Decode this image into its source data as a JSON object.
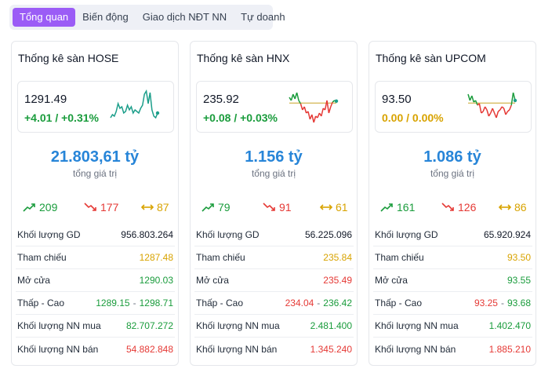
{
  "tabs": [
    "Tổng quan",
    "Biến động",
    "Giao dịch NĐT NN",
    "Tự doanh"
  ],
  "active_tab": 0,
  "labels": {
    "total": "tổng giá trị",
    "volume": "Khối lượng GD",
    "ref": "Tham chiếu",
    "open": "Mở cửa",
    "lowhigh": "Thấp - Cao",
    "foreign_buy": "Khối lượng NN mua",
    "foreign_sell": "Khối lượng NN bán"
  },
  "colors": {
    "up": "#1a9c3c",
    "down": "#e53935",
    "flat": "#d8a300",
    "accent": "#9b5cf6",
    "total": "#2785d8",
    "spark_green": "#1b9e8a"
  },
  "markets": [
    {
      "title": "Thống kê sàn HOSE",
      "index": "1291.49",
      "change": "+4.01 / +0.31%",
      "change_dir": "up",
      "total_value": "21.803,61 tỷ",
      "advance": "209",
      "decline": "177",
      "unchanged": "87",
      "volume": "956.803.264",
      "ref": "1287.48",
      "ref_dir": "flat",
      "open": "1290.03",
      "open_dir": "up",
      "low": "1289.15",
      "low_dir": "up",
      "high": "1298.71",
      "high_dir": "up",
      "foreign_buy": "82.707.272",
      "foreign_sell": "54.882.848",
      "spark": [
        0.15,
        0.25,
        0.2,
        0.35,
        0.6,
        0.45,
        0.5,
        0.3,
        0.35,
        0.55,
        0.4,
        0.5,
        0.3,
        0.4,
        0.35,
        0.3,
        0.45,
        0.55,
        0.9,
        1.0,
        0.6,
        0.95,
        0.4,
        0.2,
        0.15,
        0.3
      ],
      "spark_ref_index": 0
    },
    {
      "title": "Thống kê sàn HNX",
      "index": "235.92",
      "change": "+0.08 / +0.03%",
      "change_dir": "up",
      "total_value": "1.156 tỷ",
      "advance": "79",
      "decline": "91",
      "unchanged": "61",
      "volume": "56.225.096",
      "ref": "235.84",
      "ref_dir": "flat",
      "open": "235.49",
      "open_dir": "down",
      "low": "234.04",
      "low_dir": "down",
      "high": "236.42",
      "high_dir": "up",
      "foreign_buy": "2.481.400",
      "foreign_sell": "1.345.240",
      "spark": [
        0.8,
        0.7,
        0.9,
        0.75,
        0.95,
        0.7,
        0.6,
        0.4,
        0.5,
        0.3,
        0.35,
        0.1,
        0.25,
        0.0,
        0.2,
        0.15,
        0.3,
        0.2,
        0.45,
        0.4,
        0.7,
        0.3,
        0.5,
        0.65,
        0.7,
        0.68
      ],
      "spark_ref": 0.62
    },
    {
      "title": "Thống kê sàn UPCOM",
      "index": "93.50",
      "change": "0.00 / 0.00%",
      "change_dir": "flat",
      "total_value": "1.086 tỷ",
      "advance": "161",
      "decline": "126",
      "unchanged": "86",
      "volume": "65.920.924",
      "ref": "93.50",
      "ref_dir": "flat",
      "open": "93.55",
      "open_dir": "up",
      "low": "93.25",
      "low_dir": "down",
      "high": "93.68",
      "high_dir": "up",
      "foreign_buy": "1.402.470",
      "foreign_sell": "1.885.210",
      "spark": [
        0.9,
        0.7,
        0.85,
        0.65,
        0.7,
        0.55,
        0.6,
        0.3,
        0.35,
        0.5,
        0.4,
        0.2,
        0.3,
        0.45,
        0.3,
        0.15,
        0.35,
        0.4,
        0.5,
        0.45,
        0.25,
        0.35,
        0.4,
        0.55,
        0.95,
        0.7
      ],
      "spark_ref": 0.62
    }
  ]
}
